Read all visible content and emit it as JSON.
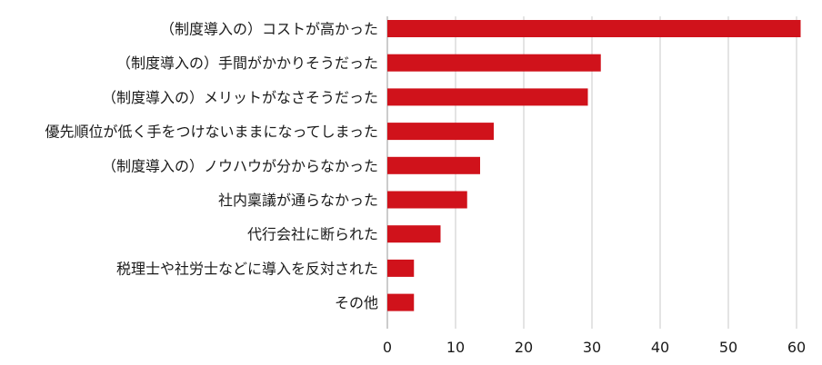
{
  "chart_data": {
    "type": "bar",
    "orientation": "horizontal",
    "categories": [
      "（制度導入の）コストが高かった",
      "（制度導入の）手間がかかりそうだった",
      "（制度導入の）メリットがなさそうだった",
      "優先順位が低く手をつけないままになってしまった",
      "（制度導入の）ノウハウが分からなかった",
      "社内稟議が通らなかった",
      "代行会社に断られた",
      "税理士や社労士などに導入を反対された",
      "その他"
    ],
    "values": [
      60.6,
      31.3,
      29.4,
      15.6,
      13.6,
      11.7,
      7.8,
      3.9,
      3.9
    ],
    "xlim": [
      0,
      60
    ],
    "ticks": [
      "0",
      "10",
      "20",
      "30",
      "40",
      "50",
      "60"
    ],
    "gridlines": true,
    "bar_color": "#d0121b",
    "grid_color": "#c8c8c8",
    "title": "",
    "xlabel": "",
    "ylabel": ""
  }
}
